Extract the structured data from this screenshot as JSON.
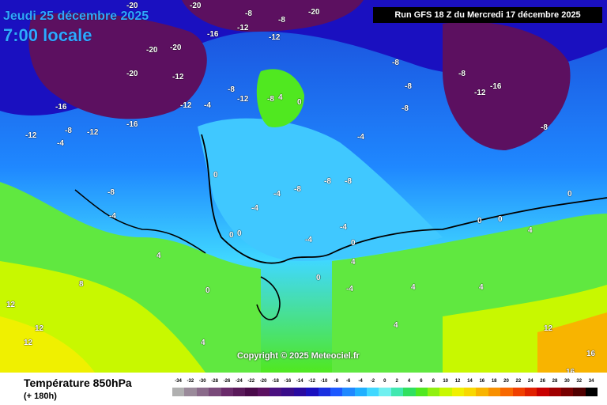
{
  "header": {
    "date_text": "Jeudi 25 décembre 2025",
    "time_text": "7:00 locale",
    "run_text": "Run GFS 18 Z du Mercredi 17 décembre 2025"
  },
  "map": {
    "copyright": "Copyright © 2025 Meteociel.fr",
    "value_labels": [
      {
        "text": "-20",
        "cls": "w"
      },
      {
        "text": "-20",
        "cls": "w"
      },
      {
        "text": "-8",
        "cls": "w"
      },
      {
        "text": "-8",
        "cls": "w"
      },
      {
        "text": "-20",
        "cls": "w"
      },
      {
        "text": "-16",
        "cls": "w"
      },
      {
        "text": "-12",
        "cls": "w"
      },
      {
        "text": "-12",
        "cls": "w"
      },
      {
        "text": "-20",
        "cls": "w"
      },
      {
        "text": "-20",
        "cls": "w"
      },
      {
        "text": "-20",
        "cls": "w"
      },
      {
        "text": "-12",
        "cls": "w"
      },
      {
        "text": "-12",
        "cls": "w"
      },
      {
        "text": "-4",
        "cls": "w"
      },
      {
        "text": "-8",
        "cls": "w"
      },
      {
        "text": "-8",
        "cls": "w"
      },
      {
        "text": "-12",
        "cls": "w"
      },
      {
        "text": "4",
        "cls": "w"
      },
      {
        "text": "0",
        "cls": "w"
      },
      {
        "text": "-16",
        "cls": "w"
      },
      {
        "text": "-8",
        "cls": "w"
      },
      {
        "text": "-12",
        "cls": "w"
      },
      {
        "text": "-16",
        "cls": "w"
      },
      {
        "text": "-12",
        "cls": "w"
      },
      {
        "text": "-4",
        "cls": "w"
      },
      {
        "text": "-8",
        "cls": "w"
      },
      {
        "text": "-4",
        "cls": "w"
      },
      {
        "text": "-8",
        "cls": "w"
      },
      {
        "text": "-8",
        "cls": "w"
      },
      {
        "text": "-8",
        "cls": "w"
      },
      {
        "text": "-8",
        "cls": "w"
      },
      {
        "text": "-12",
        "cls": "w"
      },
      {
        "text": "-16",
        "cls": "w"
      },
      {
        "text": "-8",
        "cls": "w"
      },
      {
        "text": "-4",
        "cls": "w"
      },
      {
        "text": "0",
        "cls": "w"
      },
      {
        "text": "-4",
        "cls": "w"
      },
      {
        "text": "-4",
        "cls": "w"
      },
      {
        "text": "-8",
        "cls": "w"
      },
      {
        "text": "-8",
        "cls": "w"
      },
      {
        "text": "-8",
        "cls": "w"
      },
      {
        "text": "-4",
        "cls": "w"
      },
      {
        "text": "0",
        "cls": "w"
      },
      {
        "text": "0",
        "cls": "w"
      },
      {
        "text": "0",
        "cls": "w"
      },
      {
        "text": "0",
        "cls": "w"
      },
      {
        "text": "0",
        "cls": "w"
      },
      {
        "text": "4",
        "cls": "w"
      },
      {
        "text": "4",
        "cls": "w"
      },
      {
        "text": "4",
        "cls": "w"
      },
      {
        "text": "8",
        "cls": "w"
      },
      {
        "text": "12",
        "cls": "w"
      },
      {
        "text": "12",
        "cls": "w"
      },
      {
        "text": "12",
        "cls": "w"
      },
      {
        "text": "4",
        "cls": "w"
      },
      {
        "text": "4",
        "cls": "w"
      },
      {
        "text": "12",
        "cls": "w"
      },
      {
        "text": "16",
        "cls": "w"
      },
      {
        "text": "16",
        "cls": "w"
      },
      {
        "text": "4",
        "cls": "w"
      },
      {
        "text": "-4",
        "cls": "w"
      },
      {
        "text": "0",
        "cls": "w"
      },
      {
        "text": "0",
        "cls": "w"
      },
      {
        "text": "-4",
        "cls": "w"
      },
      {
        "text": "4",
        "cls": "w"
      },
      {
        "text": "0",
        "cls": "w"
      }
    ]
  },
  "footer": {
    "title": "Température 850hPa",
    "lead": "(+ 180h)"
  },
  "legend": {
    "labels": [
      "-34",
      "-32",
      "-30",
      "-28",
      "-26",
      "-24",
      "-22",
      "-20",
      "-18",
      "-16",
      "-14",
      "-12",
      "-10",
      "-8",
      "-6",
      "-4",
      "-2",
      "0",
      "2",
      "4",
      "6",
      "8",
      "10",
      "12",
      "14",
      "16",
      "18",
      "20",
      "22",
      "24",
      "26",
      "28",
      "30",
      "32",
      "34"
    ],
    "colors": [
      "#b0b0b0",
      "#9a8a9a",
      "#8a6a8a",
      "#7a4a7a",
      "#6a2a6a",
      "#5a1a5a",
      "#4a0a4a",
      "#5c1060",
      "#4b1080",
      "#3a0c8a",
      "#2a0aa0",
      "#1a10c0",
      "#1a30e0",
      "#1c58ff",
      "#1f88ff",
      "#20b0ff",
      "#40d8ff",
      "#70f0f0",
      "#40e8b0",
      "#30e060",
      "#50e820",
      "#90f010",
      "#c8f800",
      "#f0f000",
      "#f8d800",
      "#f8b400",
      "#f89000",
      "#f86800",
      "#f04000",
      "#e02000",
      "#c80000",
      "#a00000",
      "#780000",
      "#500000",
      "#000000"
    ]
  }
}
